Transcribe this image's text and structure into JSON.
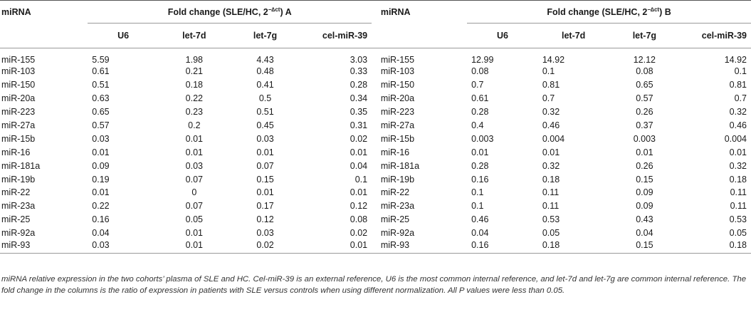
{
  "table": {
    "header_a": {
      "mirna_label": "miRNA",
      "group_label": "Fold change (SLE/HC, 2",
      "group_sup": "−∆ct",
      "group_suffix": ") A"
    },
    "header_b": {
      "mirna_label": "miRNA",
      "group_label": "Fold change (SLE/HC, 2",
      "group_sup": "−∆ct",
      "group_suffix": ") B"
    },
    "columns": [
      "U6",
      "let-7d",
      "let-7g",
      "cel-miR-39"
    ],
    "rows": [
      {
        "a_name": "miR-155",
        "a": [
          "5.59",
          "1.98",
          "4.43",
          "3.03"
        ],
        "b_name": "miR-155",
        "b": [
          "12.99",
          "14.92",
          "12.12",
          "14.92"
        ]
      },
      {
        "a_name": "miR-103",
        "a": [
          "0.61",
          "0.21",
          "0.48",
          "0.33"
        ],
        "b_name": "miR-103",
        "b": [
          "0.08",
          "0.1",
          "0.08",
          "0.1"
        ]
      },
      {
        "a_name": "miR-150",
        "a": [
          "0.51",
          "0.18",
          "0.41",
          "0.28"
        ],
        "b_name": "miR-150",
        "b": [
          "0.7",
          "0.81",
          "0.65",
          "0.81"
        ]
      },
      {
        "a_name": "miR-20a",
        "a": [
          "0.63",
          "0.22",
          "0.5",
          "0.34"
        ],
        "b_name": "miR-20a",
        "b": [
          "0.61",
          "0.7",
          "0.57",
          "0.7"
        ]
      },
      {
        "a_name": "miR-223",
        "a": [
          "0.65",
          "0.23",
          "0.51",
          "0.35"
        ],
        "b_name": "miR-223",
        "b": [
          "0.28",
          "0.32",
          "0.26",
          "0.32"
        ]
      },
      {
        "a_name": "miR-27a",
        "a": [
          "0.57",
          "0.2",
          "0.45",
          "0.31"
        ],
        "b_name": "miR-27a",
        "b": [
          "0.4",
          "0.46",
          "0.37",
          "0.46"
        ]
      },
      {
        "a_name": "miR-15b",
        "a": [
          "0.03",
          "0.01",
          "0.03",
          "0.02"
        ],
        "b_name": "miR-15b",
        "b": [
          "0.003",
          "0.004",
          "0.003",
          "0.004"
        ]
      },
      {
        "a_name": "miR-16",
        "a": [
          "0.01",
          "0.01",
          "0.01",
          "0.01"
        ],
        "b_name": "miR-16",
        "b": [
          "0.01",
          "0.01",
          "0.01",
          "0.01"
        ]
      },
      {
        "a_name": "miR-181a",
        "a": [
          "0.09",
          "0.03",
          "0.07",
          "0.04"
        ],
        "b_name": "miR-181a",
        "b": [
          "0.28",
          "0.32",
          "0.26",
          "0.32"
        ]
      },
      {
        "a_name": "miR-19b",
        "a": [
          "0.19",
          "0.07",
          "0.15",
          "0.1"
        ],
        "b_name": "miR-19b",
        "b": [
          "0.16",
          "0.18",
          "0.15",
          "0.18"
        ]
      },
      {
        "a_name": "miR-22",
        "a": [
          "0.01",
          "0",
          "0.01",
          "0.01"
        ],
        "b_name": "miR-22",
        "b": [
          "0.1",
          "0.11",
          "0.09",
          "0.11"
        ]
      },
      {
        "a_name": "miR-23a",
        "a": [
          "0.22",
          "0.07",
          "0.17",
          "0.12"
        ],
        "b_name": "miR-23a",
        "b": [
          "0.1",
          "0.11",
          "0.09",
          "0.11"
        ]
      },
      {
        "a_name": "miR-25",
        "a": [
          "0.16",
          "0.05",
          "0.12",
          "0.08"
        ],
        "b_name": "miR-25",
        "b": [
          "0.46",
          "0.53",
          "0.43",
          "0.53"
        ]
      },
      {
        "a_name": "miR-92a",
        "a": [
          "0.04",
          "0.01",
          "0.03",
          "0.02"
        ],
        "b_name": "miR-92a",
        "b": [
          "0.04",
          "0.05",
          "0.04",
          "0.05"
        ]
      },
      {
        "a_name": "miR-93",
        "a": [
          "0.03",
          "0.01",
          "0.02",
          "0.01"
        ],
        "b_name": "miR-93",
        "b": [
          "0.16",
          "0.18",
          "0.15",
          "0.18"
        ]
      }
    ]
  },
  "caption": "miRNA relative expression in the two cohorts’ plasma of SLE and HC. Cel-miR-39 is an external reference, U6 is the most common internal reference, and let-7d and let-7g are common internal reference. The fold change in the columns is the ratio of expression in patients with SLE versus controls when using different normalization. All P values were less than 0.05."
}
